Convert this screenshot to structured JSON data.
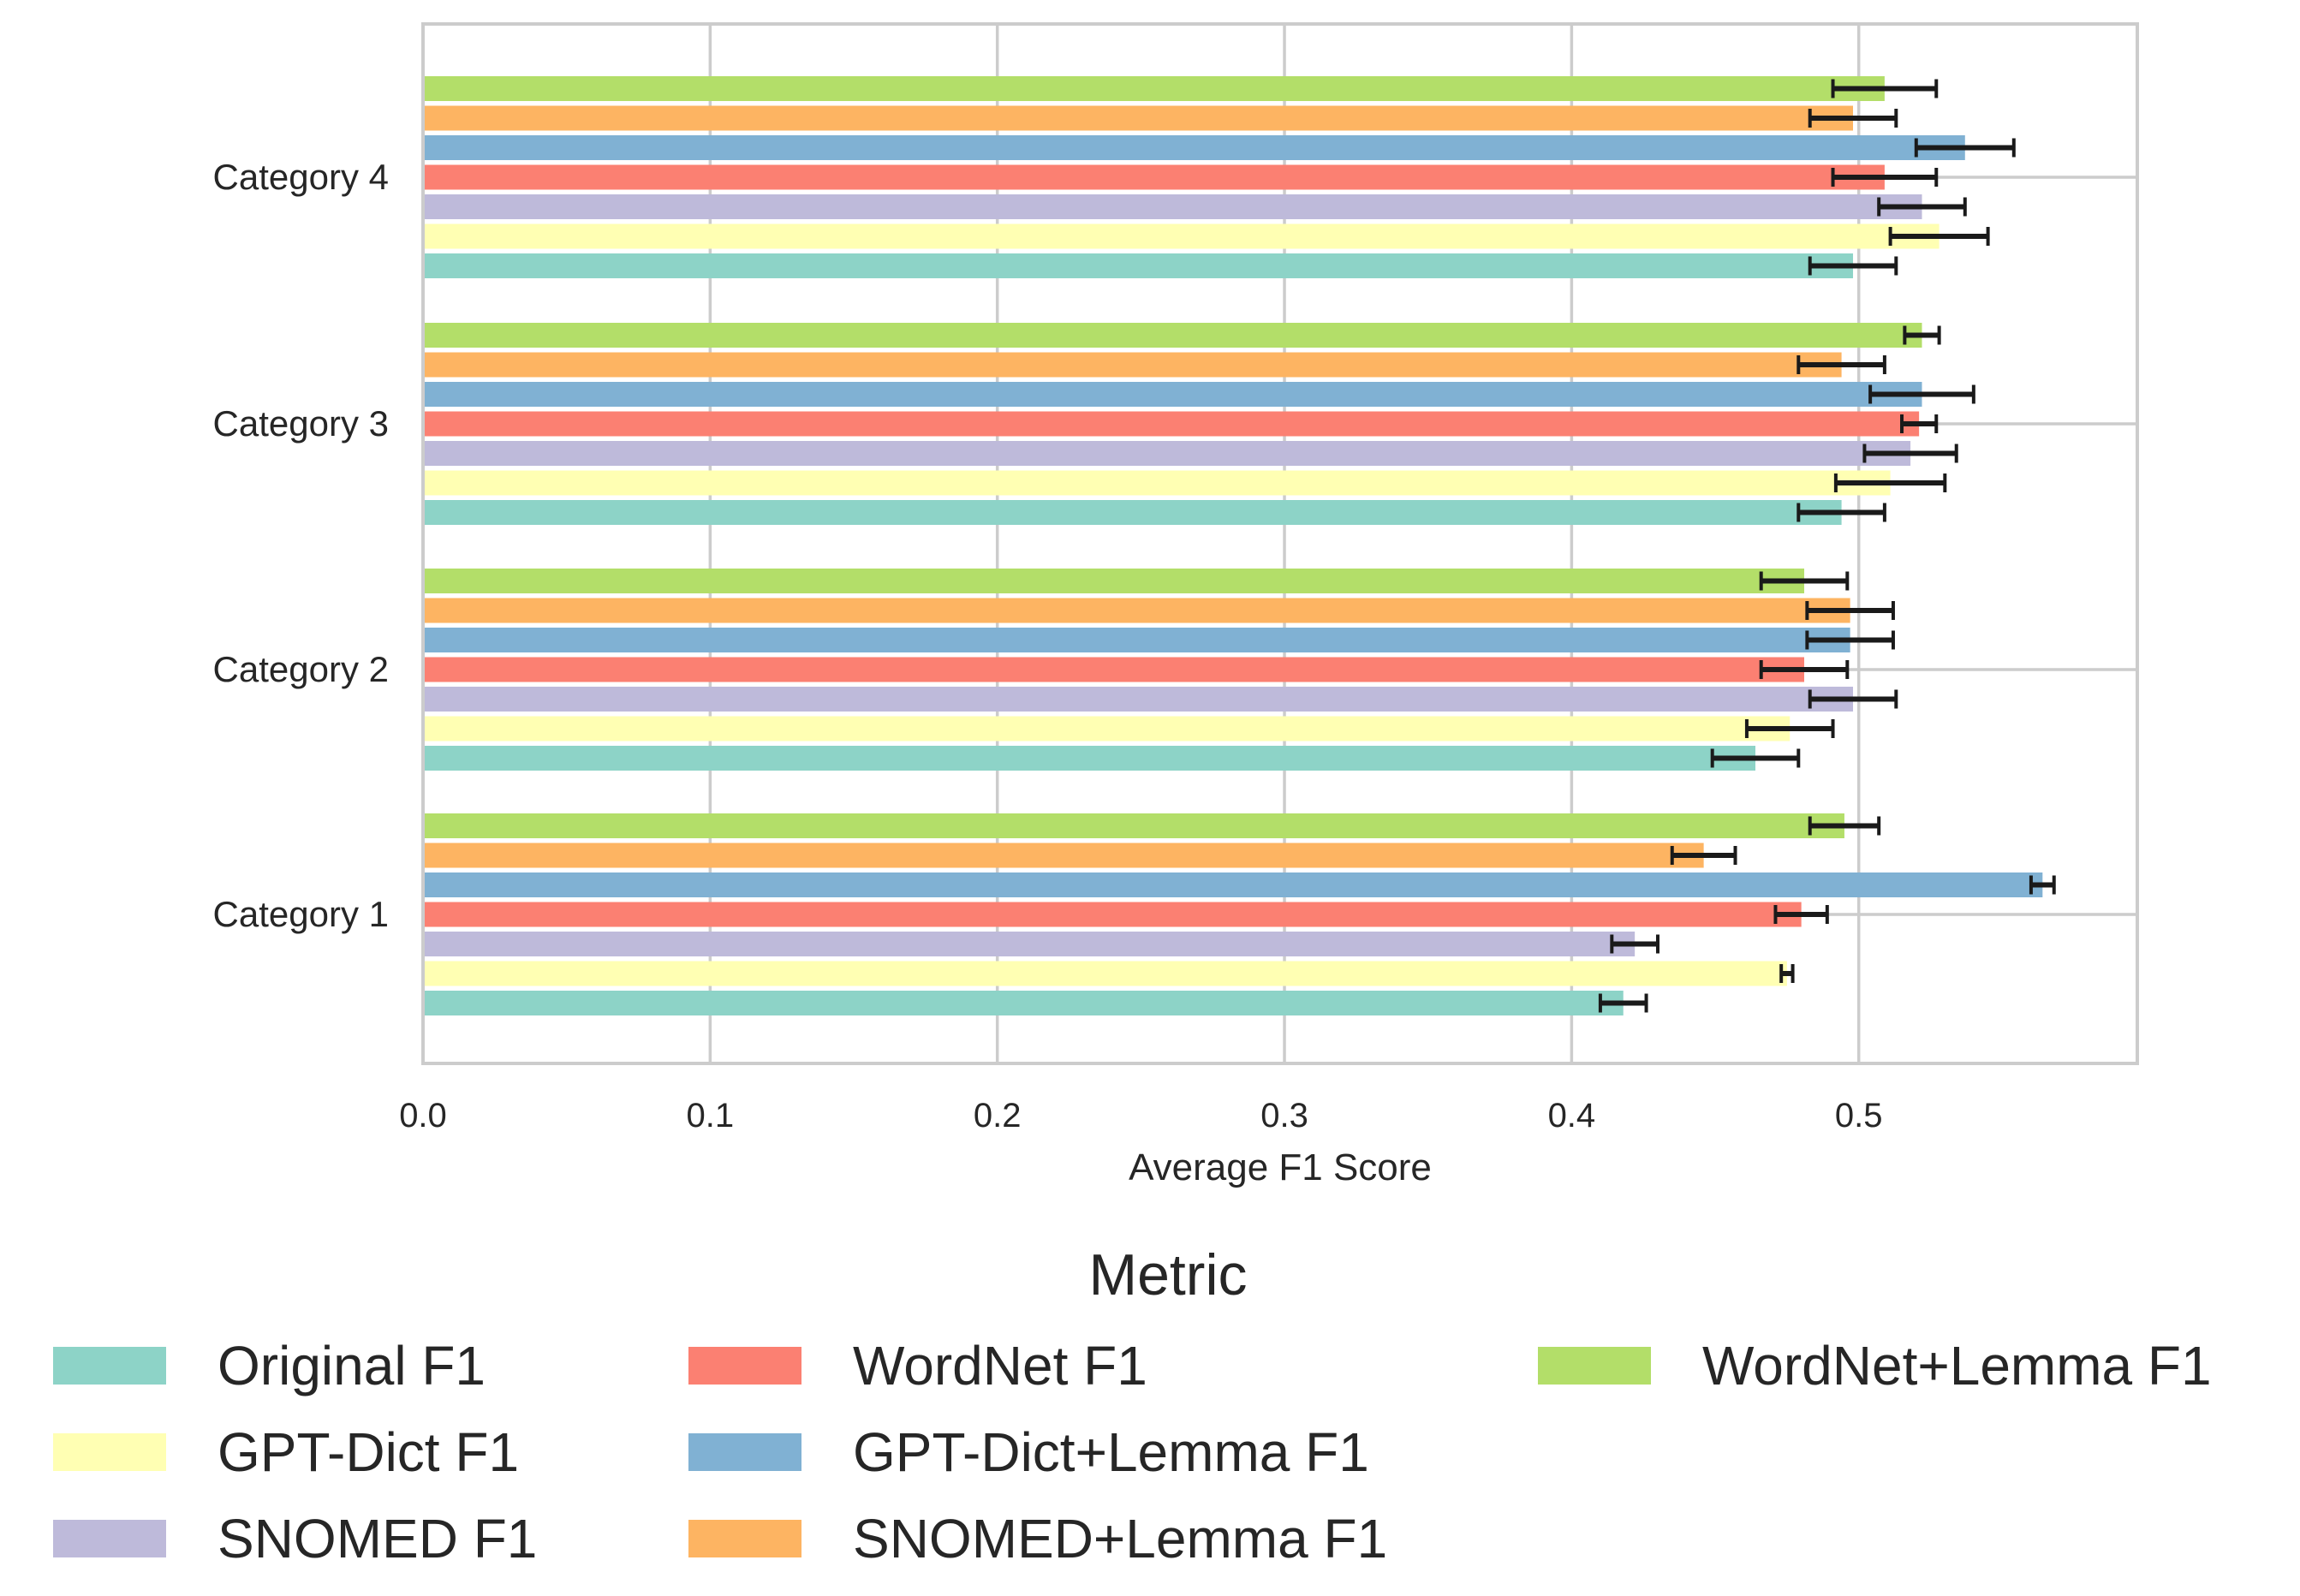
{
  "chart_data": {
    "type": "bar",
    "orientation": "horizontal",
    "xlabel": "Average F1 Score",
    "ylabel": "",
    "xlim": [
      0.0,
      0.597
    ],
    "xticks": [
      "0.0",
      "0.1",
      "0.2",
      "0.3",
      "0.4",
      "0.5"
    ],
    "grid": true,
    "categories": [
      "Category 1",
      "Category 2",
      "Category 3",
      "Category 4"
    ],
    "series": [
      {
        "name": "Original F1",
        "color": "#8dd3c7",
        "values": [
          0.418,
          0.464,
          0.494,
          0.498
        ],
        "errors": [
          0.008,
          0.015,
          0.015,
          0.015
        ]
      },
      {
        "name": "GPT-Dict F1",
        "color": "#ffffb3",
        "values": [
          0.475,
          0.476,
          0.511,
          0.528
        ],
        "errors": [
          0.002,
          0.015,
          0.019,
          0.017
        ]
      },
      {
        "name": "SNOMED F1",
        "color": "#bebada",
        "values": [
          0.422,
          0.498,
          0.518,
          0.522
        ],
        "errors": [
          0.008,
          0.015,
          0.016,
          0.015
        ]
      },
      {
        "name": "WordNet F1",
        "color": "#fb8072",
        "values": [
          0.48,
          0.481,
          0.521,
          0.509
        ],
        "errors": [
          0.009,
          0.015,
          0.006,
          0.018
        ]
      },
      {
        "name": "GPT-Dict+Lemma F1",
        "color": "#80b1d3",
        "values": [
          0.564,
          0.497,
          0.522,
          0.537
        ],
        "errors": [
          0.004,
          0.015,
          0.018,
          0.017
        ]
      },
      {
        "name": "SNOMED+Lemma F1",
        "color": "#fdb462",
        "values": [
          0.446,
          0.497,
          0.494,
          0.498
        ],
        "errors": [
          0.011,
          0.015,
          0.015,
          0.015
        ]
      },
      {
        "name": "WordNet+Lemma F1",
        "color": "#b3de69",
        "values": [
          0.495,
          0.481,
          0.522,
          0.509
        ],
        "errors": [
          0.012,
          0.015,
          0.006,
          0.018
        ]
      }
    ],
    "legend": {
      "title": "Metric",
      "placement": "bottom-center",
      "columns": 3
    }
  }
}
